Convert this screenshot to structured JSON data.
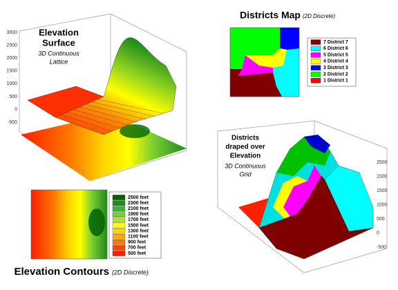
{
  "elevation_surface": {
    "title": [
      "Elevation",
      "Surface"
    ],
    "subtitle": [
      "3D Continuous",
      "Lattice"
    ],
    "axis_ticks": [
      "3000",
      "2500",
      "2000",
      "1500",
      "1000",
      "500",
      "0",
      "-500"
    ]
  },
  "districts_map": {
    "title": "Districts Map",
    "subtitle": "(2D Discrete)",
    "legend": [
      {
        "label": "7 District 7",
        "color": "#7f0000"
      },
      {
        "label": "6 District 6",
        "color": "#00ffff"
      },
      {
        "label": "5 District 5",
        "color": "#ff00ff"
      },
      {
        "label": "4 District 4",
        "color": "#ffff00"
      },
      {
        "label": "3 District 3",
        "color": "#0000ff"
      },
      {
        "label": "2 District 2",
        "color": "#00ff00"
      },
      {
        "label": "1 District 1",
        "color": "#ff0000"
      }
    ]
  },
  "districts_draped": {
    "title": [
      "Districts",
      "draped over",
      "Elevation"
    ],
    "subtitle": [
      "3D Continuous",
      "Grid"
    ],
    "axis_ticks": [
      "2500",
      "2000",
      "1500",
      "1000",
      "500",
      "0",
      "-500"
    ]
  },
  "elevation_contours": {
    "title": "Elevation Contours",
    "subtitle": "(2D Discrete)",
    "legend": [
      {
        "label": "2500 feet",
        "color": "#006400"
      },
      {
        "label": "2300 feet",
        "color": "#1e8c1e"
      },
      {
        "label": "2100 feet",
        "color": "#3cb43c"
      },
      {
        "label": "1900 feet",
        "color": "#7ccd32"
      },
      {
        "label": "1700 feet",
        "color": "#b4e61e"
      },
      {
        "label": "1500 feet",
        "color": "#ffff00"
      },
      {
        "label": "1300 feet",
        "color": "#ffd700"
      },
      {
        "label": "1100 feet",
        "color": "#ffaa00"
      },
      {
        "label": "900 feet",
        "color": "#ff7800"
      },
      {
        "label": "700 feet",
        "color": "#ff4600"
      },
      {
        "label": "500 feet",
        "color": "#ff1e00"
      }
    ]
  }
}
